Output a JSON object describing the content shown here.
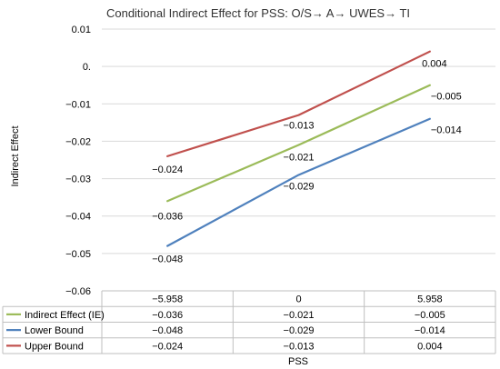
{
  "chart_data": {
    "type": "line",
    "title": "Conditional Indirect Effect for PSS: O/S→ A→ UWES→ TI",
    "xlabel": "PSS",
    "ylabel": "Indirect Effect",
    "categories": [
      "−5.958",
      "0",
      "5.958"
    ],
    "ylim": [
      -0.06,
      0.01
    ],
    "yticks": [
      "0.01",
      "0.",
      "−0.01",
      "−0.02",
      "−0.03",
      "−0.04",
      "−0.05",
      "−0.06"
    ],
    "ytick_values": [
      0.01,
      0,
      -0.01,
      -0.02,
      -0.03,
      -0.04,
      -0.05,
      -0.06
    ],
    "grid": "horizontal",
    "legend": "data-table",
    "series": [
      {
        "name": "Indirect Effect (IE)",
        "color": "#9BBB59",
        "values": [
          -0.036,
          -0.021,
          -0.005
        ],
        "labels": [
          "−0.036",
          "−0.021",
          "−0.005"
        ]
      },
      {
        "name": "Lower Bound",
        "color": "#4F81BD",
        "values": [
          -0.048,
          -0.029,
          -0.014
        ],
        "labels": [
          "−0.048",
          "−0.029",
          "−0.014"
        ]
      },
      {
        "name": "Upper Bound",
        "color": "#C0504D",
        "values": [
          -0.024,
          -0.013,
          0.004
        ],
        "labels": [
          "−0.024",
          "−0.013",
          "0.004"
        ]
      }
    ]
  }
}
